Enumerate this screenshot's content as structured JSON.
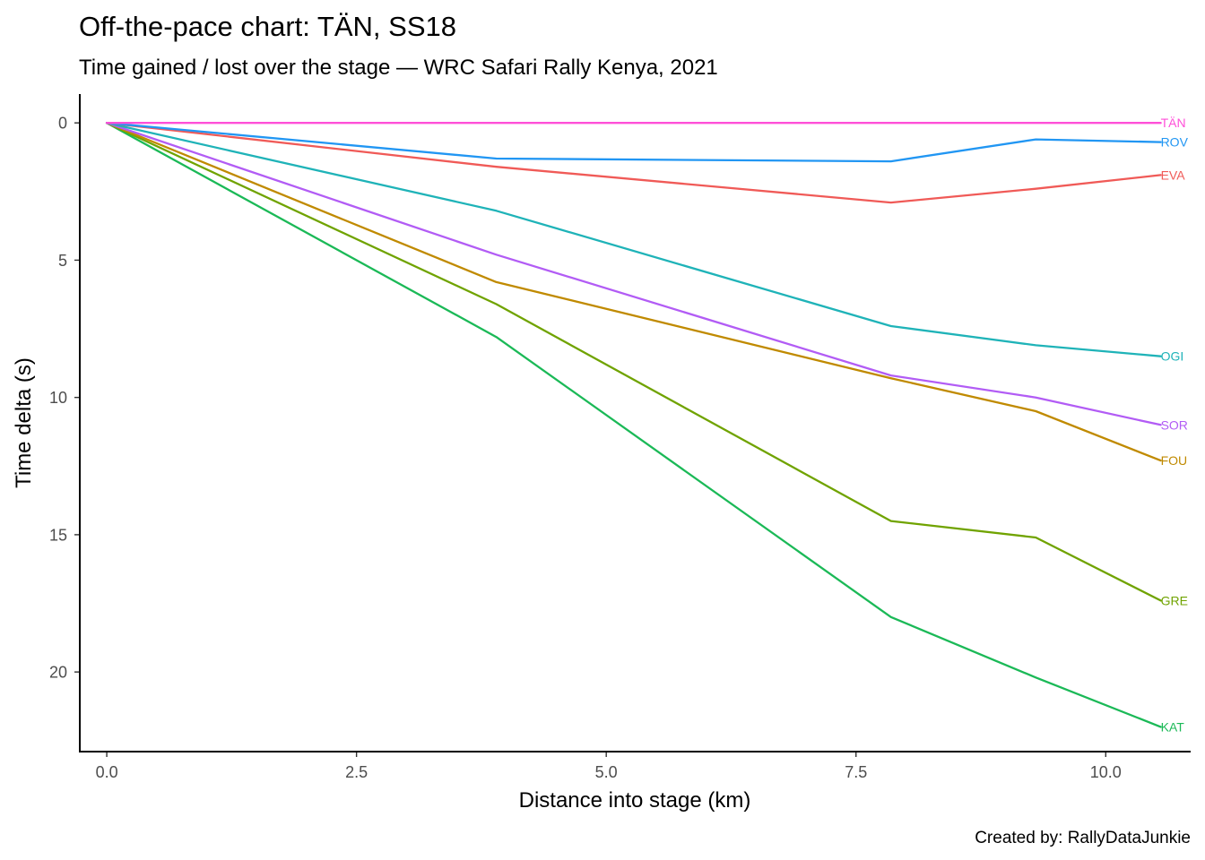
{
  "chart_data": {
    "type": "line",
    "title": "Off-the-pace chart: TÄN, SS18",
    "subtitle": "Time gained / lost over the stage — WRC Safari Rally Kenya, 2021",
    "caption": "Created by: RallyDataJunkie",
    "xlabel": "Distance into stage (km)",
    "ylabel": "Time delta (s)",
    "xlim": [
      -0.27,
      10.85
    ],
    "ylim": [
      22.9,
      -1.05
    ],
    "y_reversed": true,
    "grid": false,
    "legend": "none",
    "x_ticks": [
      {
        "value": 0,
        "label": "0.0"
      },
      {
        "value": 2.5,
        "label": "2.5"
      },
      {
        "value": 5,
        "label": "5.0"
      },
      {
        "value": 7.5,
        "label": "7.5"
      },
      {
        "value": 10,
        "label": "10.0"
      }
    ],
    "y_ticks": [
      {
        "value": 0,
        "label": "0"
      },
      {
        "value": 5,
        "label": "5"
      },
      {
        "value": 10,
        "label": "10"
      },
      {
        "value": 15,
        "label": "15"
      },
      {
        "value": 20,
        "label": "20"
      }
    ],
    "x": [
      0,
      3.9,
      7.85,
      9.3,
      10.55
    ],
    "series": [
      {
        "name": "TÄN",
        "color": "#FF4FD8",
        "values": [
          0,
          0,
          0,
          0,
          0
        ]
      },
      {
        "name": "ROV",
        "color": "#2196F3",
        "values": [
          0,
          1.3,
          1.4,
          0.6,
          0.7
        ]
      },
      {
        "name": "EVA",
        "color": "#F05A57",
        "values": [
          0,
          1.6,
          2.9,
          2.4,
          1.9
        ]
      },
      {
        "name": "OGI",
        "color": "#1FB3B8",
        "values": [
          0,
          3.2,
          7.4,
          8.1,
          8.5
        ]
      },
      {
        "name": "SOR",
        "color": "#B25CF5",
        "values": [
          0,
          4.8,
          9.2,
          10.0,
          11.0
        ]
      },
      {
        "name": "FOU",
        "color": "#C08A00",
        "values": [
          0,
          5.8,
          9.3,
          10.5,
          12.3
        ]
      },
      {
        "name": "GRE",
        "color": "#70A300",
        "values": [
          0,
          6.6,
          14.5,
          15.1,
          17.4
        ]
      },
      {
        "name": "KAT",
        "color": "#1BB957",
        "values": [
          0,
          7.8,
          18.0,
          20.2,
          22.0
        ]
      }
    ]
  }
}
